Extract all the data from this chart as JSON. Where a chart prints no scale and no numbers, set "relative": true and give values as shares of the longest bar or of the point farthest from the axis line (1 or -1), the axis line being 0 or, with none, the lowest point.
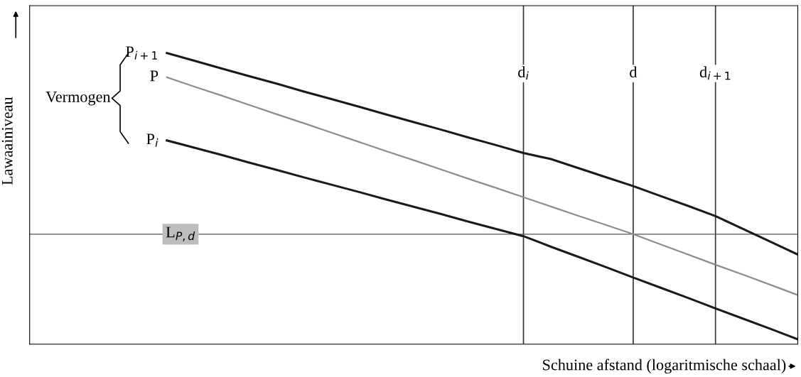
{
  "chart_data": {
    "type": "line",
    "relative": true,
    "xlabel": "Schuine afstand (logaritmische schaal)",
    "ylabel": "Lawaainiveau",
    "categories": [
      null,
      null,
      null,
      null,
      null,
      null,
      null,
      null,
      null,
      null,
      null,
      null,
      null,
      null,
      null,
      null,
      null,
      null,
      "d$_{i}$",
      null,
      null,
      null,
      "d",
      null,
      null,
      "d$_{i+1}$",
      null,
      null,
      null
    ],
    "series": [
      {
        "name": "P$_{i+1}$",
        "color": "#1a1a1a",
        "values": [
          null,
          null,
          null,
          null,
          null,
          1.0,
          0.974,
          0.947,
          0.921,
          0.895,
          0.868,
          0.842,
          0.816,
          0.789,
          0.763,
          0.737,
          0.71,
          0.684,
          0.657,
          0.636,
          0.605,
          0.574,
          0.543,
          0.509,
          0.475,
          0.44,
          0.396,
          0.352,
          0.308
        ]
      },
      {
        "name": "P",
        "color": "#8c8c8c",
        "values": [
          null,
          null,
          null,
          null,
          null,
          0.917,
          0.885,
          0.854,
          0.822,
          0.79,
          0.759,
          0.727,
          0.695,
          0.663,
          0.632,
          0.6,
          0.568,
          0.537,
          0.505,
          0.473,
          0.441,
          0.41,
          0.378,
          0.343,
          0.308,
          0.273,
          0.239,
          0.204,
          0.169
        ]
      },
      {
        "name": "P$_{i}$",
        "color": "#1a1a1a",
        "values": [
          null,
          null,
          null,
          null,
          null,
          0.7,
          0.675,
          0.65,
          0.624,
          0.599,
          0.573,
          0.548,
          0.523,
          0.497,
          0.472,
          0.447,
          0.421,
          0.396,
          0.371,
          0.335,
          0.3,
          0.265,
          0.229,
          0.194,
          0.159,
          0.123,
          0.088,
          0.053,
          0.017
        ]
      }
    ],
    "ref_lines": [
      {
        "axis": "x",
        "value": "d$_{i}$",
        "color": "#333333"
      },
      {
        "axis": "x",
        "value": "d",
        "color": "#333333"
      },
      {
        "axis": "x",
        "value": "d$_{i+1}$",
        "color": "#333333"
      },
      {
        "axis": "y",
        "value": 0.378,
        "label": "L$_{P,d}$",
        "color": "#555555"
      }
    ],
    "annotations": [
      "Vermogen"
    ],
    "legend": false,
    "marker": "none",
    "line_style": "solid"
  }
}
